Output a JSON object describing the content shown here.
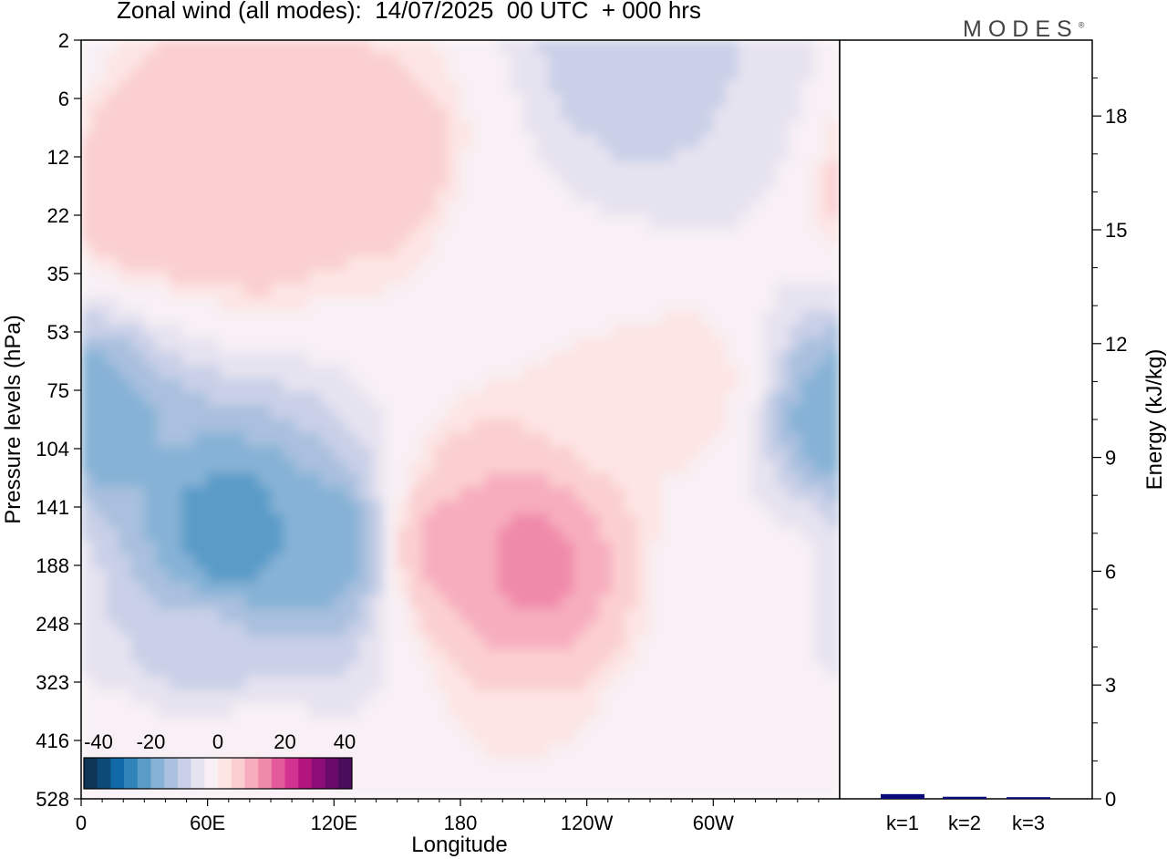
{
  "title": "Zonal wind (all modes):  14/07/2025  00 UTC  + 000 hrs",
  "logo": "MODES",
  "logo_mark": "®",
  "chart_data": [
    {
      "type": "heatmap",
      "xlabel": "Longitude",
      "ylabel": "Pressure levels (hPa)",
      "x_ticks": [
        "0",
        "60E",
        "120E",
        "180",
        "120W",
        "60W"
      ],
      "y_ticks": [
        "2",
        "6",
        "12",
        "22",
        "35",
        "53",
        "75",
        "104",
        "141",
        "188",
        "248",
        "323",
        "416",
        "528"
      ],
      "colorbar": {
        "ticks": [
          "-40",
          "-20",
          "0",
          "20",
          "40"
        ],
        "colors": [
          "#0c3556",
          "#0d4a78",
          "#0f6aa7",
          "#3184ba",
          "#5a9bc8",
          "#86b2d6",
          "#a9c0de",
          "#c9d0e7",
          "#e6e3f0",
          "#f8f0f4",
          "#fde5e3",
          "#fbcfd1",
          "#f7adbd",
          "#f08aaa",
          "#e45b9b",
          "#d23390",
          "#b3157f",
          "#8c0d76",
          "#6a0a6a",
          "#4a0c5c"
        ]
      },
      "fields": [
        {
          "lon": 0,
          "lev": 6.5,
          "v": -20
        },
        {
          "lon": 60,
          "lev": 10.5,
          "v": -10
        },
        {
          "lon": 30,
          "lev": 2.6,
          "v": 8
        },
        {
          "lon": 80,
          "lev": 2.6,
          "v": 8
        },
        {
          "lon": 150,
          "lev": 2.2,
          "v": 6
        },
        {
          "lon": 210,
          "lev": 3.3,
          "v": -4
        },
        {
          "lon": 262,
          "lev": 0.4,
          "v": -12
        },
        {
          "lon": 300,
          "lev": 1.0,
          "v": -8
        },
        {
          "lon": 70,
          "lev": 8.6,
          "v": -24
        },
        {
          "lon": 122,
          "lev": 8.7,
          "v": -20
        },
        {
          "lon": 168,
          "lev": 8.7,
          "v": 10
        },
        {
          "lon": 212,
          "lev": 8.9,
          "v": 14
        },
        {
          "lon": 245,
          "lev": 6.2,
          "v": 3
        },
        {
          "lon": 290,
          "lev": 6.0,
          "v": 4
        },
        {
          "lon": 330,
          "lev": 9.0,
          "v": -3
        },
        {
          "lon": 20,
          "lev": 12.8,
          "v": 1
        },
        {
          "lon": 75,
          "lev": 12.5,
          "v": 2
        },
        {
          "lon": 300,
          "lev": 12.5,
          "v": -3
        },
        {
          "lon": 210,
          "lev": 13.0,
          "v": 2
        }
      ],
      "xlim": [
        0,
        360
      ],
      "ylim_levels": [
        "2",
        "528"
      ]
    },
    {
      "type": "bar",
      "categories": [
        "k=1",
        "k=2",
        "k=3"
      ],
      "values": [
        0.1,
        0.03,
        0.02
      ],
      "ylabel": "Energy (kJ/kg)",
      "ylim": [
        0,
        20
      ],
      "y_ticks": [
        "0",
        "3",
        "6",
        "9",
        "12",
        "15",
        "18"
      ],
      "bar_color": "#0a0a7a"
    }
  ]
}
